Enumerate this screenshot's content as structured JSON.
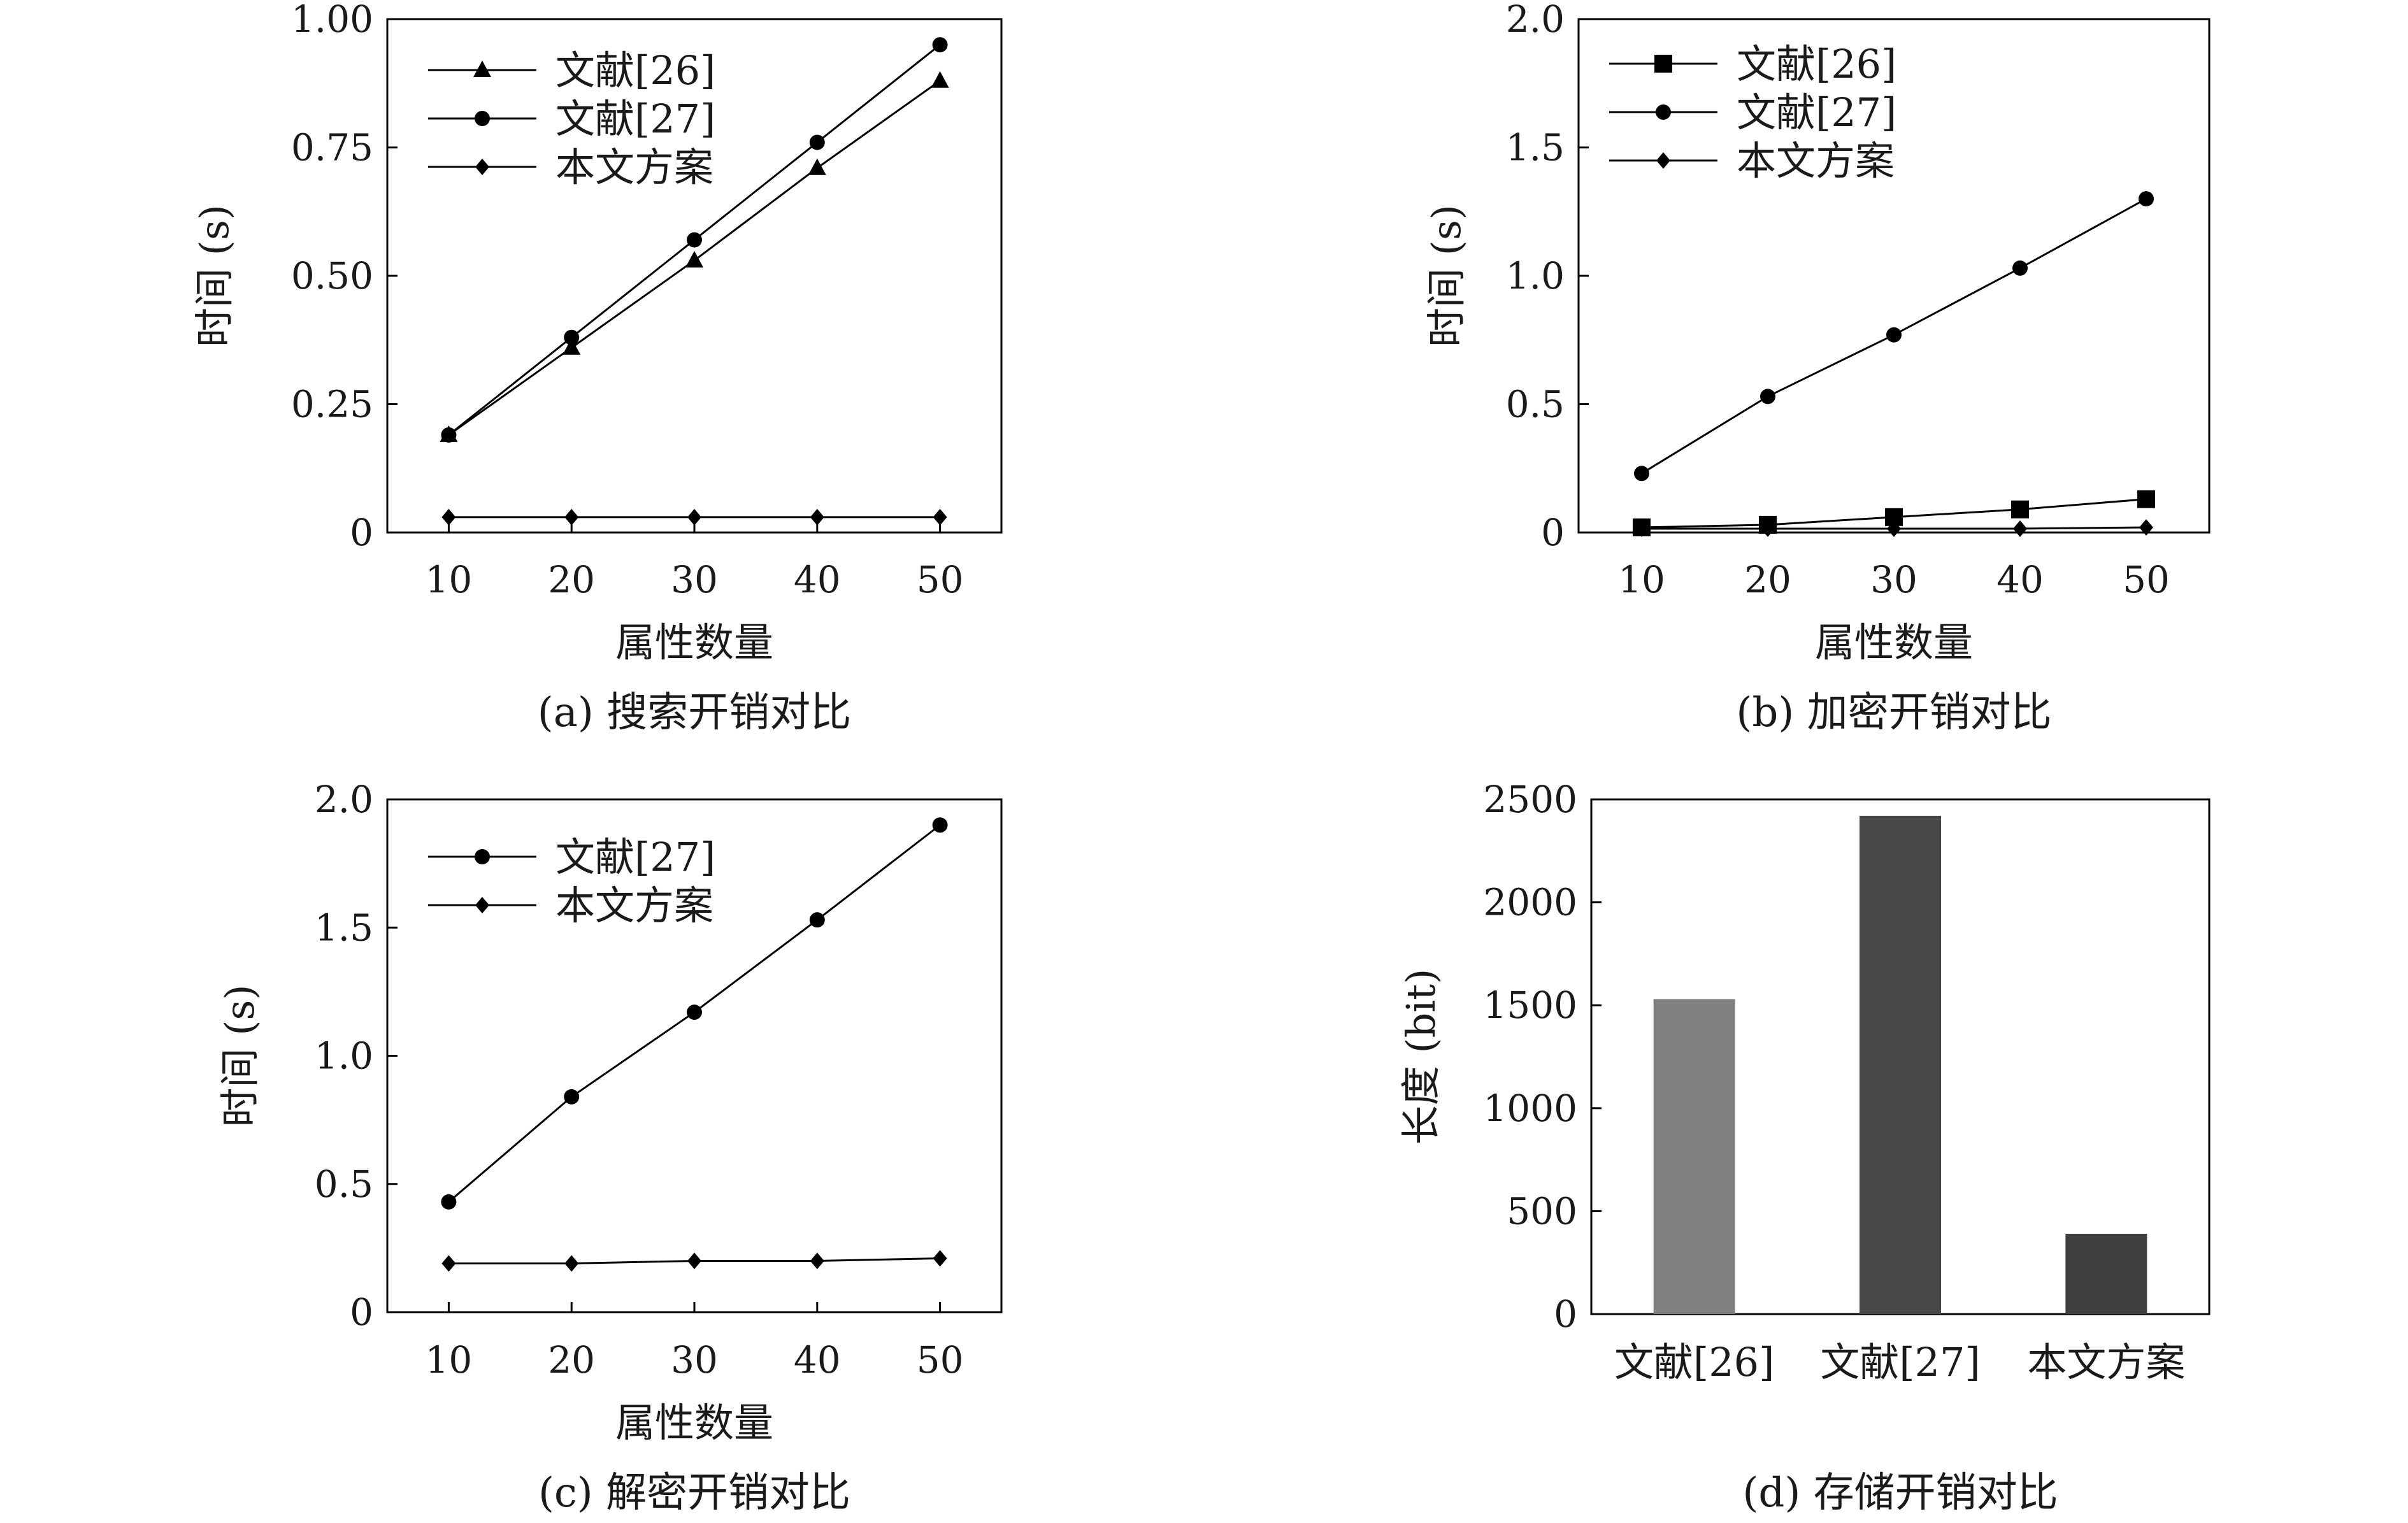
{
  "chart_data": [
    {
      "id": "a",
      "type": "line",
      "caption": "(a) 搜索开销对比",
      "xlabel": "属性数量",
      "ylabel": "时间 (s)",
      "x": [
        10,
        20,
        30,
        40,
        50
      ],
      "xlim": [
        5,
        55
      ],
      "ylim": [
        0,
        1.0
      ],
      "yticks": [
        0,
        0.25,
        0.5,
        0.75,
        1.0
      ],
      "ytick_labels": [
        "0",
        "0.25",
        "0.50",
        "0.75",
        "1.00"
      ],
      "legend_position": "top-left",
      "series": [
        {
          "name": "文献[26]",
          "marker": "triangle",
          "values": [
            0.19,
            0.36,
            0.53,
            0.71,
            0.88
          ]
        },
        {
          "name": "文献[27]",
          "marker": "circle",
          "values": [
            0.19,
            0.38,
            0.57,
            0.76,
            0.95
          ]
        },
        {
          "name": "本文方案",
          "marker": "diamond",
          "values": [
            0.03,
            0.03,
            0.03,
            0.03,
            0.03
          ]
        }
      ]
    },
    {
      "id": "b",
      "type": "line",
      "caption": "(b) 加密开销对比",
      "xlabel": "属性数量",
      "ylabel": "时间 (s)",
      "x": [
        10,
        20,
        30,
        40,
        50
      ],
      "xlim": [
        5,
        55
      ],
      "ylim": [
        0,
        2.0
      ],
      "yticks": [
        0,
        0.5,
        1.0,
        1.5,
        2.0
      ],
      "ytick_labels": [
        "0",
        "0.5",
        "1.0",
        "1.5",
        "2.0"
      ],
      "legend_position": "top-left",
      "series": [
        {
          "name": "文献[26]",
          "marker": "square",
          "values": [
            0.02,
            0.03,
            0.06,
            0.09,
            0.13
          ]
        },
        {
          "name": "文献[27]",
          "marker": "circle",
          "values": [
            0.23,
            0.53,
            0.77,
            1.03,
            1.3
          ]
        },
        {
          "name": "本文方案",
          "marker": "diamond",
          "values": [
            0.015,
            0.015,
            0.015,
            0.015,
            0.02
          ]
        }
      ]
    },
    {
      "id": "c",
      "type": "line",
      "caption": "(c) 解密开销对比",
      "xlabel": "属性数量",
      "ylabel": "时间 (s)",
      "x": [
        10,
        20,
        30,
        40,
        50
      ],
      "xlim": [
        5,
        55
      ],
      "ylim": [
        0,
        2.0
      ],
      "yticks": [
        0,
        0.5,
        1.0,
        1.5,
        2.0
      ],
      "ytick_labels": [
        "0",
        "0.5",
        "1.0",
        "1.5",
        "2.0"
      ],
      "legend_position": "top-left",
      "series": [
        {
          "name": "文献[27]",
          "marker": "circle",
          "values": [
            0.43,
            0.84,
            1.17,
            1.53,
            1.9
          ]
        },
        {
          "name": "本文方案",
          "marker": "diamond",
          "values": [
            0.19,
            0.19,
            0.2,
            0.2,
            0.21
          ]
        }
      ]
    },
    {
      "id": "d",
      "type": "bar",
      "caption": "(d) 存储开销对比",
      "xlabel": "",
      "ylabel": "长度 (bit)",
      "categories": [
        "文献[26]",
        "文献[27]",
        "本文方案"
      ],
      "values": [
        1530,
        2420,
        390
      ],
      "colors": [
        "#808080",
        "#484848",
        "#404040"
      ],
      "ylim": [
        0,
        2500
      ],
      "yticks": [
        0,
        500,
        1000,
        1500,
        2000,
        2500
      ],
      "ytick_labels": [
        "0",
        "500",
        "1000",
        "1500",
        "2000",
        "2500"
      ]
    }
  ]
}
